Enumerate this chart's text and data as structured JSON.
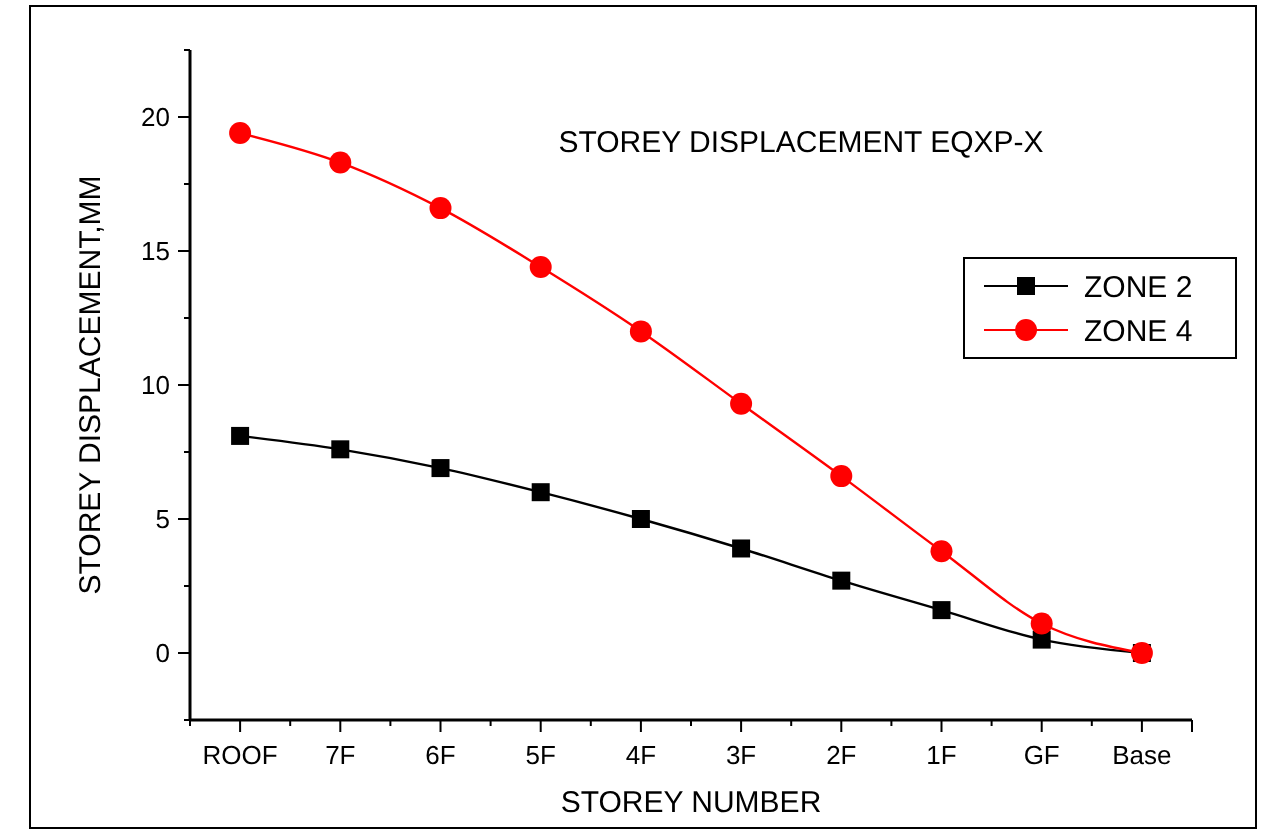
{
  "chart_data": {
    "type": "line",
    "title": "STOREY DISPLACEMENT EQXP-X",
    "xlabel": "STOREY NUMBER",
    "ylabel": "STOREY DISPLACEMENT,MM",
    "categories": [
      "ROOF",
      "7F",
      "6F",
      "5F",
      "4F",
      "3F",
      "2F",
      "1F",
      "GF",
      "Base"
    ],
    "series": [
      {
        "name": "ZONE 2",
        "color": "#000000",
        "marker": "square",
        "values": [
          8.1,
          7.6,
          6.9,
          6.0,
          5.0,
          3.9,
          2.7,
          1.6,
          0.5,
          0
        ]
      },
      {
        "name": "ZONE 4",
        "color": "#ff0000",
        "marker": "circle",
        "values": [
          19.4,
          18.3,
          16.6,
          14.4,
          12.0,
          9.3,
          6.6,
          3.8,
          1.1,
          0
        ]
      }
    ],
    "ylim": [
      -2.5,
      22.5
    ],
    "yticks": [
      0,
      5,
      10,
      15,
      20
    ],
    "legend": "right",
    "grid": false
  }
}
